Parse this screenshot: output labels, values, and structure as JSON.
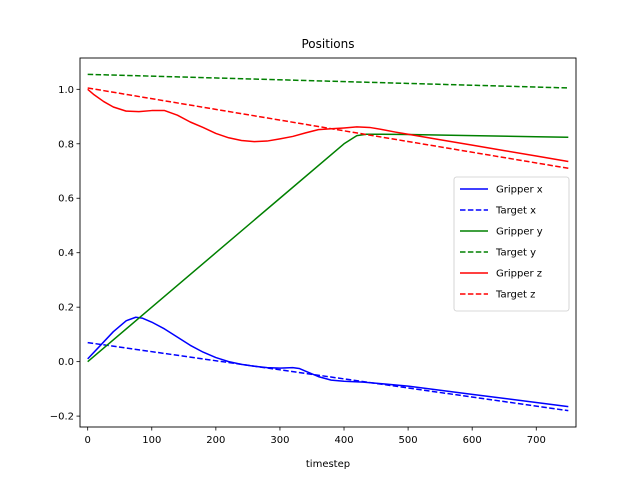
{
  "chart_data": {
    "type": "line",
    "title": "Positions",
    "xlabel": "timestep",
    "ylabel": "",
    "xlim": [
      -12,
      762
    ],
    "ylim": [
      -0.24,
      1.115
    ],
    "xticks": [
      0,
      100,
      200,
      300,
      400,
      500,
      600,
      700
    ],
    "yticks": [
      -0.2,
      0.0,
      0.2,
      0.4,
      0.6,
      0.8,
      1.0
    ],
    "grid": false,
    "legend": "center-right",
    "series": [
      {
        "name": "Gripper x",
        "color": "#0000ff",
        "dash": "solid",
        "x": [
          0,
          20,
          40,
          60,
          75,
          85,
          100,
          120,
          140,
          160,
          180,
          200,
          220,
          240,
          260,
          280,
          300,
          320,
          330,
          340,
          360,
          380,
          400,
          430,
          500,
          600,
          700,
          750
        ],
        "y": [
          0.01,
          0.06,
          0.11,
          0.15,
          0.163,
          0.16,
          0.145,
          0.12,
          0.09,
          0.06,
          0.035,
          0.015,
          0.0,
          -0.01,
          -0.017,
          -0.022,
          -0.024,
          -0.022,
          -0.025,
          -0.035,
          -0.055,
          -0.068,
          -0.072,
          -0.075,
          -0.09,
          -0.12,
          -0.15,
          -0.165
        ]
      },
      {
        "name": "Target x",
        "color": "#0000ff",
        "dash": "dashed",
        "x": [
          0,
          750
        ],
        "y": [
          0.07,
          -0.18
        ]
      },
      {
        "name": "Gripper y",
        "color": "#008000",
        "dash": "solid",
        "x": [
          0,
          100,
          200,
          300,
          400,
          420,
          435,
          450,
          500,
          600,
          700,
          750
        ],
        "y": [
          0.0,
          0.2,
          0.4,
          0.6,
          0.8,
          0.83,
          0.835,
          0.835,
          0.834,
          0.83,
          0.826,
          0.824
        ]
      },
      {
        "name": "Target y",
        "color": "#008000",
        "dash": "dashed",
        "x": [
          0,
          750
        ],
        "y": [
          1.055,
          1.005
        ]
      },
      {
        "name": "Gripper z",
        "color": "#ff0000",
        "dash": "solid",
        "x": [
          0,
          10,
          25,
          40,
          60,
          80,
          100,
          120,
          140,
          160,
          180,
          200,
          220,
          240,
          260,
          280,
          300,
          320,
          340,
          360,
          380,
          400,
          420,
          440,
          460,
          480,
          500,
          550,
          600,
          650,
          700,
          750
        ],
        "y": [
          1.0,
          0.98,
          0.955,
          0.935,
          0.92,
          0.918,
          0.922,
          0.922,
          0.905,
          0.88,
          0.86,
          0.838,
          0.822,
          0.812,
          0.808,
          0.81,
          0.818,
          0.827,
          0.84,
          0.852,
          0.855,
          0.858,
          0.862,
          0.86,
          0.852,
          0.843,
          0.835,
          0.815,
          0.795,
          0.775,
          0.755,
          0.735
        ]
      },
      {
        "name": "Target z",
        "color": "#ff0000",
        "dash": "dashed",
        "x": [
          0,
          750
        ],
        "y": [
          1.005,
          0.71
        ]
      }
    ]
  }
}
